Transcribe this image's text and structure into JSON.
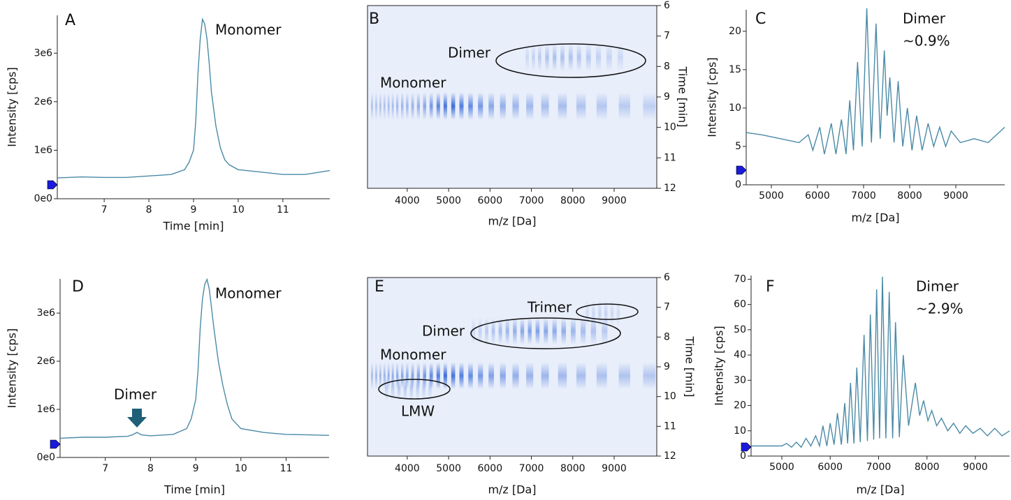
{
  "chart_data": [
    {
      "type": "line",
      "panel_label": "A",
      "xlabel": "Time [min]",
      "ylabel": "Intensity [cps]",
      "color": "#4a8aa6",
      "xlim": [
        5.95,
        12.05
      ],
      "xticks": [
        7,
        8,
        9,
        10,
        11
      ],
      "ylim": [
        0,
        3780000
      ],
      "yticks": [
        {
          "value": 0,
          "label": "0e0"
        },
        {
          "value": 1000000,
          "label": "1e6"
        },
        {
          "value": 2000000,
          "label": "2e6"
        },
        {
          "value": 3000000,
          "label": "3e6"
        }
      ],
      "x": [
        5.95,
        6.5,
        7,
        7.5,
        8,
        8.5,
        8.8,
        8.9,
        9.0,
        9.05,
        9.1,
        9.15,
        9.2,
        9.25,
        9.3,
        9.35,
        9.4,
        9.5,
        9.6,
        9.7,
        9.8,
        10,
        10.5,
        11,
        11.5,
        12.05
      ],
      "values": [
        430000,
        450000,
        440000,
        440000,
        470000,
        500000,
        600000,
        750000,
        1000000,
        1600000,
        2600000,
        3300000,
        3700000,
        3600000,
        3300000,
        2800000,
        2200000,
        1500000,
        1050000,
        800000,
        700000,
        600000,
        550000,
        500000,
        500000,
        580000
      ],
      "annotations": [
        "Monomer"
      ]
    },
    {
      "type": "heatmap",
      "panel_label": "B",
      "xlabel": "m/z [Da]",
      "ylabel": "Time [min]",
      "color": "#2a5fd6",
      "xlim": [
        3040,
        10030
      ],
      "xticks": [
        4000,
        5000,
        6000,
        7000,
        8000,
        9000
      ],
      "ylim": [
        6,
        12
      ],
      "yticks": [
        6,
        7,
        8,
        9,
        10,
        11,
        12
      ],
      "bands": [
        {
          "time": 9.3,
          "x": [
            3150,
            3250,
            3350,
            3450,
            3550,
            3650,
            3760,
            3880,
            4000,
            4130,
            4270,
            4420,
            4580,
            4750,
            4920,
            5110,
            5310,
            5530,
            5770,
            6030,
            6310,
            6620,
            6960,
            7330,
            7750,
            8200,
            8700,
            9250,
            9850
          ],
          "values": [
            0.3,
            0.3,
            0.32,
            0.32,
            0.35,
            0.35,
            0.38,
            0.4,
            0.4,
            0.42,
            0.45,
            0.5,
            0.6,
            0.75,
            0.85,
            0.9,
            0.8,
            0.7,
            0.6,
            0.5,
            0.45,
            0.4,
            0.38,
            0.35,
            0.35,
            0.3,
            0.28,
            0.25,
            0.22
          ]
        },
        {
          "time": 7.7,
          "x": [
            6900,
            7050,
            7200,
            7380,
            7560,
            7750,
            7950,
            8150,
            8380,
            8620,
            8880,
            9150
          ],
          "values": [
            0.15,
            0.2,
            0.25,
            0.3,
            0.32,
            0.32,
            0.3,
            0.28,
            0.25,
            0.2,
            0.18,
            0.15
          ]
        }
      ],
      "annotations": [
        "Dimer",
        "Monomer"
      ]
    },
    {
      "type": "line",
      "panel_label": "C",
      "xlabel": "m/z [Da]",
      "ylabel": "Intensity [cps]",
      "color": "#4a8aa6",
      "xlim": [
        4455,
        10060
      ],
      "xticks": [
        5000,
        6000,
        7000,
        8000,
        9000
      ],
      "ylim": [
        0,
        22.8
      ],
      "yticks": [
        0,
        5,
        10,
        15,
        20
      ],
      "x": [
        4455,
        4800,
        5200,
        5600,
        5800,
        5900,
        6050,
        6150,
        6300,
        6400,
        6520,
        6620,
        6700,
        6780,
        6870,
        6970,
        7070,
        7170,
        7270,
        7360,
        7450,
        7510,
        7570,
        7660,
        7750,
        7850,
        7950,
        8050,
        8150,
        8270,
        8400,
        8520,
        8650,
        8780,
        8900,
        9100,
        9400,
        9700,
        10060
      ],
      "values": [
        6.8,
        6.5,
        6,
        5.5,
        6.5,
        4.5,
        7.5,
        4,
        8,
        4,
        8.5,
        4,
        11,
        4.5,
        16,
        5,
        23,
        5.5,
        21,
        6,
        17.5,
        9,
        14,
        5.5,
        13.5,
        5,
        10,
        4.5,
        9,
        4.5,
        8,
        5,
        7.5,
        5,
        7,
        5.5,
        6,
        5.5,
        7.5
      ],
      "annotations": [
        "Dimer",
        "~0.9%"
      ]
    },
    {
      "type": "line",
      "panel_label": "D",
      "xlabel": "Time [min]",
      "ylabel": "Intensity [cps]",
      "color": "#4a8aa6",
      "xlim": [
        6.0,
        11.95
      ],
      "xticks": [
        7,
        8,
        9,
        10,
        11
      ],
      "ylim": [
        0,
        3710000
      ],
      "yticks": [
        {
          "value": 0,
          "label": "0e0"
        },
        {
          "value": 1000000,
          "label": "1e6"
        },
        {
          "value": 2000000,
          "label": "2e6"
        },
        {
          "value": 3000000,
          "label": "3e6"
        }
      ],
      "x": [
        6.0,
        6.5,
        7,
        7.5,
        7.6,
        7.7,
        7.8,
        8,
        8.5,
        8.8,
        8.9,
        9.0,
        9.05,
        9.1,
        9.15,
        9.2,
        9.25,
        9.3,
        9.35,
        9.4,
        9.5,
        9.6,
        9.7,
        9.8,
        10,
        10.5,
        11,
        11.5,
        11.95
      ],
      "values": [
        400000,
        420000,
        420000,
        440000,
        470000,
        520000,
        470000,
        450000,
        480000,
        600000,
        800000,
        1200000,
        1800000,
        2700000,
        3300000,
        3600000,
        3700000,
        3500000,
        3100000,
        2700000,
        2000000,
        1500000,
        1100000,
        800000,
        600000,
        520000,
        480000,
        470000,
        460000
      ],
      "annotations": [
        "Monomer",
        "Dimer"
      ]
    },
    {
      "type": "heatmap",
      "panel_label": "E",
      "xlabel": "m/z [Da]",
      "ylabel": "Time [min]",
      "color": "#2a5fd6",
      "xlim": [
        3040,
        10030
      ],
      "xticks": [
        4000,
        5000,
        6000,
        7000,
        8000,
        9000
      ],
      "ylim": [
        6,
        12
      ],
      "yticks": [
        6,
        7,
        8,
        9,
        10,
        11,
        12
      ],
      "bands": [
        {
          "time": 9.3,
          "x": [
            3150,
            3250,
            3350,
            3450,
            3550,
            3650,
            3760,
            3880,
            4000,
            4130,
            4270,
            4420,
            4580,
            4750,
            4920,
            5110,
            5310,
            5530,
            5770,
            6030,
            6310,
            6620,
            6960,
            7330,
            7750,
            8200,
            8700,
            9250,
            9850
          ],
          "values": [
            0.35,
            0.38,
            0.4,
            0.42,
            0.45,
            0.45,
            0.48,
            0.5,
            0.5,
            0.52,
            0.55,
            0.6,
            0.7,
            0.8,
            0.9,
            0.85,
            0.8,
            0.7,
            0.6,
            0.55,
            0.5,
            0.45,
            0.42,
            0.4,
            0.38,
            0.35,
            0.32,
            0.3,
            0.28
          ]
        },
        {
          "time": 9.7,
          "x": [
            3500,
            3650,
            3800,
            3950,
            4100,
            4250,
            4400,
            4550
          ],
          "values": [
            0.2,
            0.22,
            0.25,
            0.25,
            0.25,
            0.22,
            0.2,
            0.18
          ]
        },
        {
          "time": 7.8,
          "x": [
            5600,
            5760,
            5920,
            6080,
            6250,
            6420,
            6600,
            6780,
            6960,
            7150,
            7350,
            7560,
            7780,
            8010,
            8250,
            8500,
            8770
          ],
          "values": [
            0.15,
            0.2,
            0.25,
            0.3,
            0.35,
            0.4,
            0.45,
            0.5,
            0.55,
            0.55,
            0.5,
            0.48,
            0.45,
            0.4,
            0.35,
            0.3,
            0.25
          ]
        },
        {
          "time": 7.2,
          "x": [
            8350,
            8500,
            8650,
            8800,
            8950,
            9100
          ],
          "values": [
            0.12,
            0.15,
            0.18,
            0.18,
            0.15,
            0.12
          ]
        }
      ],
      "annotations": [
        "Dimer",
        "Monomer",
        "Trimer",
        "LMW"
      ]
    },
    {
      "type": "line",
      "panel_label": "F",
      "xlabel": "m/z [Da]",
      "ylabel": "Intensity [cps]",
      "color": "#4a8aa6",
      "xlim": [
        4365,
        9708
      ],
      "xticks": [
        5000,
        6000,
        7000,
        8000,
        9000
      ],
      "ylim": [
        0,
        71.5
      ],
      "yticks": [
        0,
        10,
        20,
        30,
        40,
        50,
        60,
        70
      ],
      "x": [
        4365,
        4700,
        5000,
        5100,
        5200,
        5300,
        5400,
        5500,
        5600,
        5700,
        5780,
        5850,
        5930,
        6000,
        6080,
        6150,
        6230,
        6300,
        6360,
        6420,
        6490,
        6550,
        6620,
        6700,
        6770,
        6830,
        6900,
        6960,
        7020,
        7080,
        7150,
        7220,
        7290,
        7350,
        7430,
        7510,
        7620,
        7760,
        7850,
        7930,
        8020,
        8100,
        8200,
        8300,
        8430,
        8550,
        8680,
        8800,
        8950,
        9100,
        9250,
        9400,
        9550,
        9708
      ],
      "values": [
        4,
        4,
        4,
        5,
        3.5,
        5.5,
        3.5,
        7,
        4,
        8,
        4,
        12,
        4,
        13,
        4.5,
        17,
        4.5,
        21,
        5,
        29,
        5,
        35,
        5.5,
        48,
        6,
        56,
        6.5,
        66,
        7,
        71,
        7,
        65,
        7,
        53,
        7.5,
        40,
        12,
        29,
        16,
        22,
        14,
        18,
        12,
        15,
        10,
        13,
        9,
        12,
        9,
        11,
        8,
        11,
        8,
        10
      ],
      "annotations": [
        "Dimer",
        "~2.9%"
      ]
    }
  ]
}
